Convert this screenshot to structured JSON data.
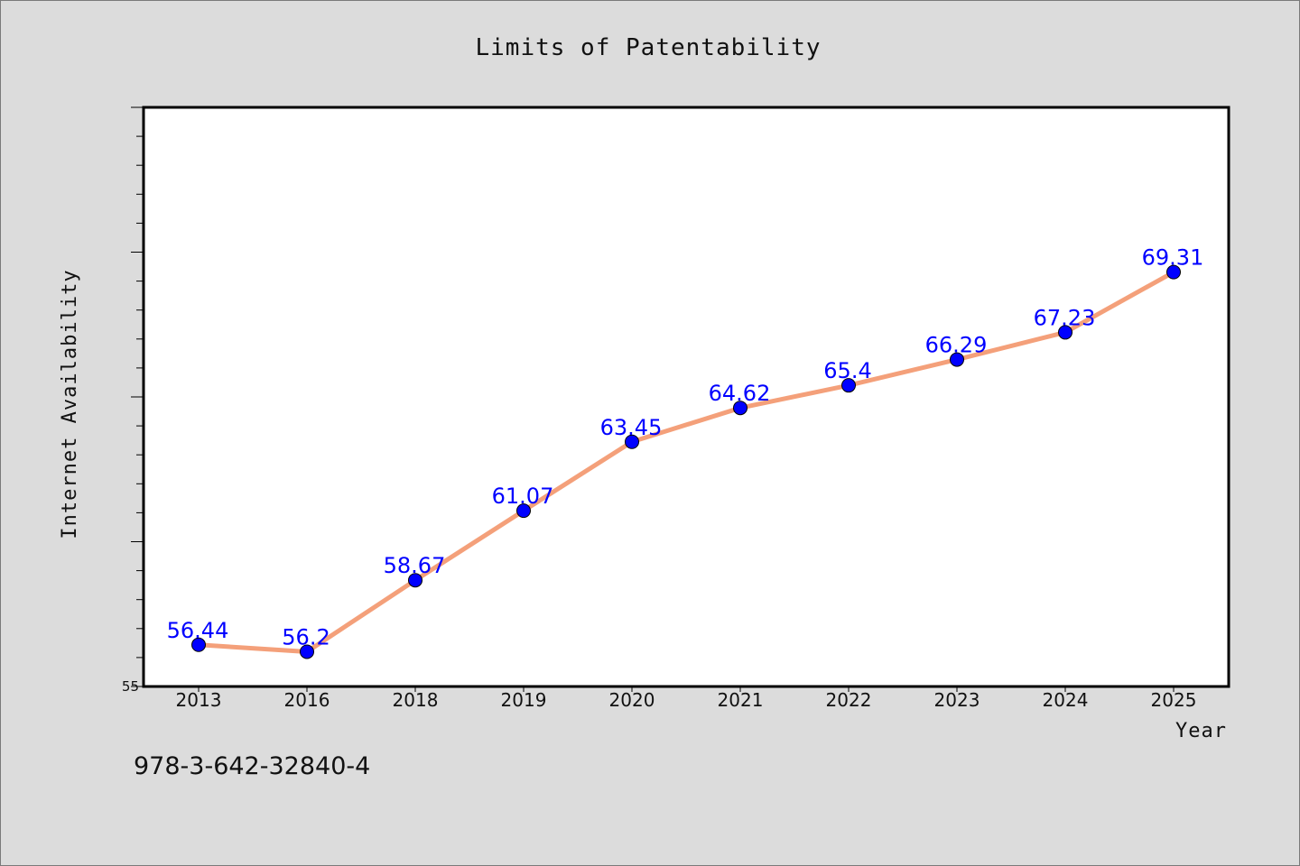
{
  "chart_data": {
    "type": "line",
    "title": "Limits of Patentability",
    "xlabel": "Year",
    "ylabel": "Internet Availability",
    "categories": [
      "2013",
      "2016",
      "2018",
      "2019",
      "2020",
      "2021",
      "2022",
      "2023",
      "2024",
      "2025"
    ],
    "series": [
      {
        "values": [
          56.44,
          56.2,
          58.67,
          61.07,
          63.45,
          64.62,
          65.4,
          66.29,
          67.23,
          69.31
        ],
        "labels": [
          "56.44",
          "56.2",
          "58.67",
          "61.07",
          "63.45",
          "64.62",
          "65.4",
          "66.29",
          "67.23",
          "69.31"
        ],
        "line_color": "#f4a07a",
        "marker_color": "#0000ff"
      }
    ],
    "ylim": [
      55,
      75
    ],
    "ytick_labels": [
      "55"
    ],
    "grid": false,
    "legend": "none"
  },
  "footer": {
    "isbn": "978-3-642-32840-4"
  }
}
